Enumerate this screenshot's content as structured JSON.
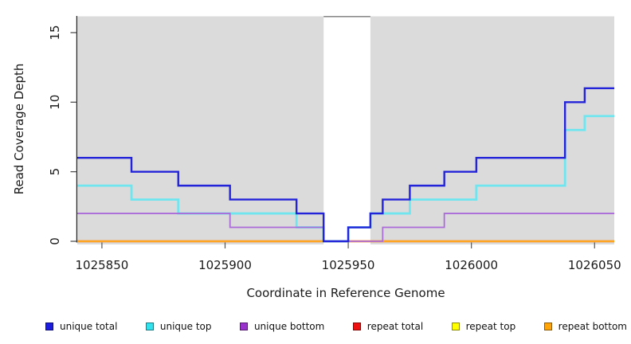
{
  "chart_data": {
    "type": "line",
    "subtype": "step-coverage",
    "title": "",
    "xlabel": "Coordinate in Reference Genome",
    "ylabel": "Read Coverage Depth",
    "xlim": [
      1025840,
      1026058
    ],
    "ylim": [
      0,
      16.2
    ],
    "grid": "off",
    "xticks": [
      {
        "value": 1025850,
        "label": "1025850"
      },
      {
        "value": 1025900,
        "label": "1025900"
      },
      {
        "value": 1025950,
        "label": "1025950"
      },
      {
        "value": 1026000,
        "label": "1026000"
      },
      {
        "value": 1026050,
        "label": "1026050"
      }
    ],
    "yticks": [
      {
        "value": 0,
        "label": "0"
      },
      {
        "value": 5,
        "label": "5"
      },
      {
        "value": 10,
        "label": "10"
      },
      {
        "value": 15,
        "label": "15"
      }
    ],
    "shade_color": "#DBDBDB",
    "shaded_regions": [
      {
        "from": 1025840,
        "to": 1025940
      },
      {
        "from": 1025959,
        "to": 1026058
      }
    ],
    "gap_top_border": {
      "from": 1025940,
      "to": 1025959
    },
    "series": [
      {
        "name": "repeat-total",
        "label": "repeat total",
        "color": "#DE1212",
        "breaks": [
          [
            1025840,
            0
          ]
        ],
        "end": 1026058
      },
      {
        "name": "repeat-top",
        "label": "repeat top",
        "color": "#FFF200",
        "breaks": [
          [
            1025840,
            0
          ]
        ],
        "end": 1026058
      },
      {
        "name": "repeat-bottom",
        "label": "repeat bottom",
        "color": "#FFA41E",
        "breaks": [
          [
            1025840,
            0
          ]
        ],
        "end": 1026058
      },
      {
        "name": "unique-top",
        "label": "unique top",
        "color": "#6FE6EF",
        "breaks": [
          [
            1025840,
            4
          ],
          [
            1025862,
            3
          ],
          [
            1025881,
            2
          ],
          [
            1025929,
            1
          ],
          [
            1025940,
            0
          ],
          [
            1025950,
            1
          ],
          [
            1025959,
            2
          ],
          [
            1025975,
            3
          ],
          [
            1026002,
            4
          ],
          [
            1026038,
            8
          ],
          [
            1026046,
            9
          ]
        ],
        "end": 1026058
      },
      {
        "name": "unique-bottom",
        "label": "unique bottom",
        "color": "#AB6BD9",
        "breaks": [
          [
            1025840,
            2
          ],
          [
            1025902,
            1
          ],
          [
            1025940,
            0
          ],
          [
            1025964,
            1
          ],
          [
            1025989,
            2
          ]
        ],
        "end": 1026058
      },
      {
        "name": "unique-total",
        "label": "unique total",
        "color": "#2323D9",
        "breaks": [
          [
            1025840,
            6
          ],
          [
            1025862,
            5
          ],
          [
            1025881,
            4
          ],
          [
            1025902,
            3
          ],
          [
            1025929,
            2
          ],
          [
            1025940,
            0
          ],
          [
            1025950,
            1
          ],
          [
            1025959,
            2
          ],
          [
            1025964,
            3
          ],
          [
            1025975,
            4
          ],
          [
            1025989,
            5
          ],
          [
            1026002,
            6
          ],
          [
            1026038,
            10
          ],
          [
            1026046,
            11
          ]
        ],
        "end": 1026058
      }
    ],
    "legend": {
      "position": "bottom",
      "items": [
        {
          "label": "unique total",
          "color": "#1C1CDE"
        },
        {
          "label": "unique top",
          "color": "#2FE2EE"
        },
        {
          "label": "unique bottom",
          "color": "#9932CC"
        },
        {
          "label": "repeat total",
          "color": "#EE1111"
        },
        {
          "label": "repeat top",
          "color": "#FFFF00"
        },
        {
          "label": "repeat bottom",
          "color": "#FFA50A"
        }
      ]
    }
  }
}
